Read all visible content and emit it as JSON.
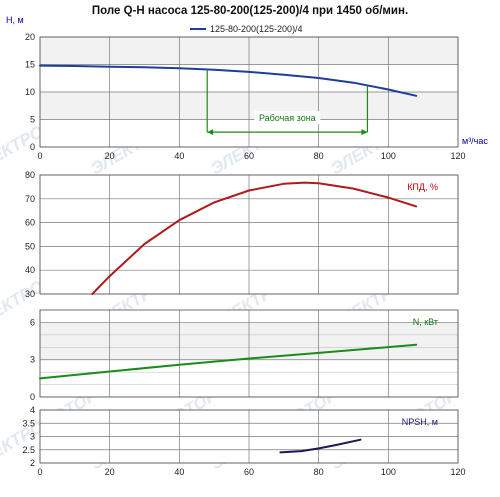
{
  "title": "Поле Q-H насоса 125-80-200(125-200)/4 при 1450 об/мин.",
  "colors": {
    "grid": "#7a7a7a",
    "band": "#f2f2f2",
    "watermark": "#c6d2e2"
  },
  "watermark_text": "ЭЛЕКТРОМОТОР",
  "chart_data": [
    {
      "id": "qh",
      "type": "line",
      "xlabel": "м³/час",
      "ylabel": "Н, м",
      "xlim": [
        0,
        120
      ],
      "ylim": [
        0,
        20
      ],
      "xticks": [
        0,
        20,
        40,
        60,
        80,
        100,
        120
      ],
      "yticks": [
        0,
        5,
        10,
        15,
        20
      ],
      "grid": true,
      "legend": "top-center",
      "series": [
        {
          "name": "125-80-200(125-200)/4",
          "color": "#1c3f9c",
          "x": [
            0,
            10,
            20,
            30,
            40,
            50,
            60,
            70,
            80,
            90,
            100,
            108
          ],
          "y": [
            14.8,
            14.72,
            14.6,
            14.5,
            14.3,
            14.05,
            13.65,
            13.15,
            12.55,
            11.7,
            10.45,
            9.3
          ]
        }
      ],
      "annotation": {
        "label": "Рабочая зона",
        "x_range": [
          48,
          94
        ],
        "y_level": 2.7,
        "color": "#1a8a1a"
      }
    },
    {
      "id": "eff",
      "type": "line",
      "xlim": [
        0,
        120
      ],
      "ylim": [
        30,
        80
      ],
      "yticks": [
        30,
        40,
        50,
        60,
        70,
        80
      ],
      "grid": true,
      "label": "КПД, %",
      "label_color": "#cc0000",
      "series": [
        {
          "color": "#b01a1a",
          "x": [
            15,
            20,
            30,
            40,
            50,
            60,
            70,
            76,
            80,
            90,
            100,
            108
          ],
          "y": [
            30,
            37.5,
            51,
            61,
            68.5,
            73.5,
            76.3,
            76.8,
            76.5,
            74.3,
            70.5,
            66.8
          ]
        }
      ]
    },
    {
      "id": "power",
      "type": "line",
      "xlim": [
        0,
        120
      ],
      "ylim": [
        0,
        7
      ],
      "yticks": [
        0,
        3,
        6
      ],
      "grid": true,
      "label": "N, кВт",
      "label_color": "#117711",
      "series": [
        {
          "color": "#1a8c1a",
          "x": [
            0,
            20,
            40,
            60,
            80,
            108
          ],
          "y": [
            1.5,
            2.05,
            2.6,
            3.1,
            3.55,
            4.2
          ]
        }
      ]
    },
    {
      "id": "npsh",
      "type": "line",
      "xlim": [
        0,
        120
      ],
      "ylim": [
        2,
        4
      ],
      "xticks": [
        0,
        20,
        40,
        60,
        80,
        100,
        120
      ],
      "yticks": [
        2,
        2.5,
        3,
        3.5,
        4
      ],
      "grid": true,
      "label": "NPSH, м",
      "label_color": "#1a1a7a",
      "series": [
        {
          "color": "#1a1a5a",
          "x": [
            69,
            75,
            80,
            85,
            92
          ],
          "y": [
            2.4,
            2.45,
            2.55,
            2.68,
            2.88
          ]
        }
      ]
    }
  ]
}
